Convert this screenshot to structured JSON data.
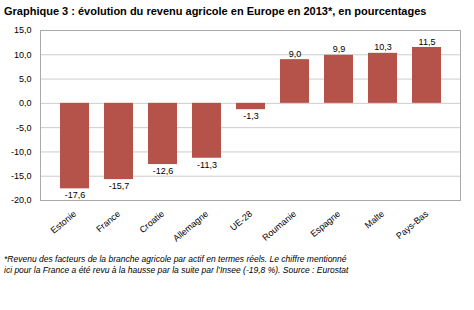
{
  "chart_data": {
    "type": "bar",
    "title": "Graphique 3 : évolution du revenu agricole en Europe en 2013*, en pourcentages",
    "categories": [
      "Estonie",
      "France",
      "Croatie",
      "Allemagne",
      "UE-28",
      "Roumanie",
      "Espagne",
      "Malte",
      "Pays-Bas"
    ],
    "values": [
      -17.6,
      -15.7,
      -12.6,
      -11.3,
      -1.3,
      9.0,
      9.9,
      10.3,
      11.5
    ],
    "value_labels": [
      "-17,6",
      "-15,7",
      "-12,6",
      "-11,3",
      "-1,3",
      "9,0",
      "9,9",
      "10,3",
      "11,5"
    ],
    "color": "#b5524a",
    "ylim": [
      -20,
      15
    ],
    "yticks": [
      {
        "value": -20,
        "label": "-20,0"
      },
      {
        "value": -15,
        "label": "-15,0"
      },
      {
        "value": -10,
        "label": "-10,0"
      },
      {
        "value": -5,
        "label": "-5,0"
      },
      {
        "value": 0,
        "label": "0,0"
      },
      {
        "value": 5,
        "label": "5,0"
      },
      {
        "value": 10,
        "label": "10,0"
      },
      {
        "value": 15,
        "label": "15,0"
      }
    ],
    "grid": true,
    "data_labels": true,
    "caption": [
      "*Revenu des facteurs de la branche agricole par actif en termes réels. Le chiffre mentionné",
      "ici pour la France a été revu à la hausse par la suite par l’Insee (-19,8 %). Source : Eurostat"
    ]
  }
}
